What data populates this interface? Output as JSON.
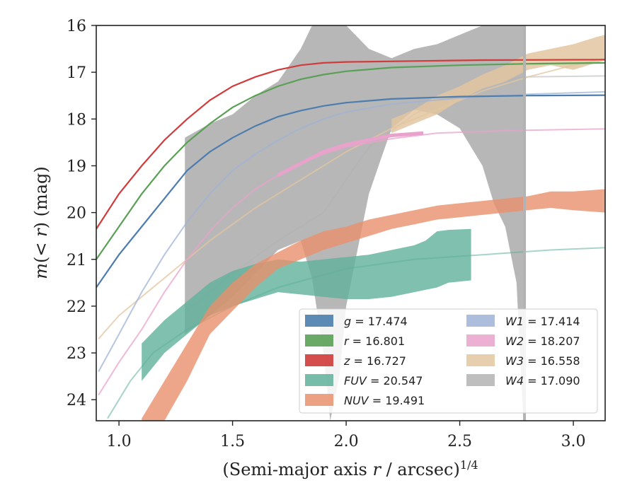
{
  "chart_data": {
    "type": "line",
    "xlabel": "(Semi-major axis r / arcsec)^1/4",
    "ylabel": "m(<r) (mag)",
    "xlim": [
      0.9,
      3.14
    ],
    "ylim": [
      24.45,
      16.0
    ],
    "y_inverted": true,
    "xticks": [
      1.0,
      1.5,
      2.0,
      2.5,
      3.0
    ],
    "xtick_labels": [
      "1.0",
      "1.5",
      "2.0",
      "2.5",
      "3.0"
    ],
    "yticks": [
      16,
      17,
      18,
      19,
      20,
      21,
      22,
      23,
      24
    ],
    "ytick_labels": [
      "16",
      "17",
      "18",
      "19",
      "20",
      "21",
      "22",
      "23",
      "24"
    ],
    "grid": false,
    "legend_position": "lower-right",
    "series": [
      {
        "name": "g = 17.474",
        "label_var": "g",
        "label_val": "17.474",
        "color": "#4C7DAE",
        "kind": "line",
        "points": [
          [
            0.9,
            21.6
          ],
          [
            1.0,
            20.9
          ],
          [
            1.1,
            20.3
          ],
          [
            1.2,
            19.7
          ],
          [
            1.3,
            19.1
          ],
          [
            1.4,
            18.7
          ],
          [
            1.5,
            18.4
          ],
          [
            1.6,
            18.15
          ],
          [
            1.7,
            17.95
          ],
          [
            1.8,
            17.82
          ],
          [
            1.9,
            17.72
          ],
          [
            2.0,
            17.65
          ],
          [
            2.2,
            17.57
          ],
          [
            2.5,
            17.52
          ],
          [
            2.8,
            17.5
          ],
          [
            3.14,
            17.49
          ]
        ]
      },
      {
        "name": "r = 16.801",
        "label_var": "r",
        "label_val": "16.801",
        "color": "#5AA055",
        "kind": "line",
        "points": [
          [
            0.9,
            21.0
          ],
          [
            1.0,
            20.3
          ],
          [
            1.1,
            19.6
          ],
          [
            1.2,
            19.0
          ],
          [
            1.3,
            18.5
          ],
          [
            1.4,
            18.1
          ],
          [
            1.5,
            17.75
          ],
          [
            1.6,
            17.5
          ],
          [
            1.7,
            17.3
          ],
          [
            1.8,
            17.15
          ],
          [
            1.9,
            17.05
          ],
          [
            2.0,
            16.98
          ],
          [
            2.2,
            16.9
          ],
          [
            2.5,
            16.85
          ],
          [
            2.8,
            16.82
          ],
          [
            3.14,
            16.8
          ]
        ]
      },
      {
        "name": "z = 16.727",
        "label_var": "z",
        "label_val": "16.727",
        "color": "#D03B3B",
        "kind": "line",
        "points": [
          [
            0.9,
            20.35
          ],
          [
            1.0,
            19.6
          ],
          [
            1.1,
            19.0
          ],
          [
            1.2,
            18.45
          ],
          [
            1.3,
            18.0
          ],
          [
            1.4,
            17.6
          ],
          [
            1.5,
            17.3
          ],
          [
            1.6,
            17.1
          ],
          [
            1.7,
            16.95
          ],
          [
            1.8,
            16.85
          ],
          [
            1.9,
            16.8
          ],
          [
            2.0,
            16.78
          ],
          [
            2.3,
            16.76
          ],
          [
            2.6,
            16.74
          ],
          [
            3.14,
            16.73
          ]
        ]
      },
      {
        "name": "FUV = 20.547",
        "label_var": "FUV",
        "label_val": "20.547",
        "color": "#5FB09A",
        "kind": "band",
        "upper": [
          [
            1.1,
            22.8
          ],
          [
            1.2,
            22.3
          ],
          [
            1.3,
            21.9
          ],
          [
            1.4,
            21.5
          ],
          [
            1.5,
            21.25
          ],
          [
            1.6,
            21.1
          ],
          [
            1.7,
            21.0
          ],
          [
            1.8,
            21.05
          ],
          [
            1.9,
            21.0
          ],
          [
            2.0,
            20.95
          ],
          [
            2.1,
            20.9
          ],
          [
            2.2,
            20.8
          ],
          [
            2.3,
            20.7
          ],
          [
            2.35,
            20.6
          ],
          [
            2.4,
            20.4
          ],
          [
            2.45,
            20.37
          ],
          [
            2.55,
            20.35
          ]
        ],
        "lower": [
          [
            1.1,
            23.6
          ],
          [
            1.2,
            23.0
          ],
          [
            1.3,
            22.6
          ],
          [
            1.4,
            22.2
          ],
          [
            1.5,
            22.0
          ],
          [
            1.6,
            21.85
          ],
          [
            1.7,
            21.7
          ],
          [
            1.8,
            21.75
          ],
          [
            1.9,
            21.8
          ],
          [
            2.0,
            21.85
          ],
          [
            2.1,
            21.85
          ],
          [
            2.2,
            21.8
          ],
          [
            2.3,
            21.7
          ],
          [
            2.4,
            21.6
          ],
          [
            2.45,
            21.5
          ],
          [
            2.55,
            21.45
          ]
        ],
        "fit": [
          [
            0.95,
            24.4
          ],
          [
            1.05,
            23.6
          ],
          [
            1.15,
            23.0
          ],
          [
            1.3,
            22.5
          ],
          [
            1.5,
            22.0
          ],
          [
            1.7,
            21.6
          ],
          [
            2.0,
            21.2
          ],
          [
            2.3,
            21.0
          ],
          [
            2.6,
            20.9
          ],
          [
            2.9,
            20.8
          ],
          [
            3.14,
            20.75
          ]
        ]
      },
      {
        "name": "NUV = 19.491",
        "label_var": "NUV",
        "label_val": "19.491",
        "color": "#E9906C",
        "kind": "band",
        "upper": [
          [
            1.1,
            24.4
          ],
          [
            1.2,
            23.6
          ],
          [
            1.3,
            22.8
          ],
          [
            1.4,
            22.0
          ],
          [
            1.5,
            21.5
          ],
          [
            1.6,
            21.1
          ],
          [
            1.7,
            20.85
          ],
          [
            1.8,
            20.6
          ],
          [
            1.9,
            20.4
          ],
          [
            2.0,
            20.3
          ],
          [
            2.1,
            20.15
          ],
          [
            2.2,
            20.05
          ],
          [
            2.3,
            19.95
          ],
          [
            2.4,
            19.85
          ],
          [
            2.5,
            19.8
          ],
          [
            2.6,
            19.75
          ],
          [
            2.7,
            19.7
          ],
          [
            2.8,
            19.65
          ],
          [
            2.9,
            19.55
          ],
          [
            3.0,
            19.55
          ],
          [
            3.14,
            19.5
          ]
        ],
        "lower": [
          [
            1.1,
            24.45
          ],
          [
            1.2,
            24.45
          ],
          [
            1.3,
            23.6
          ],
          [
            1.4,
            22.6
          ],
          [
            1.5,
            22.1
          ],
          [
            1.6,
            21.6
          ],
          [
            1.7,
            21.2
          ],
          [
            1.8,
            21.0
          ],
          [
            1.9,
            20.8
          ],
          [
            2.0,
            20.65
          ],
          [
            2.1,
            20.5
          ],
          [
            2.2,
            20.35
          ],
          [
            2.3,
            20.25
          ],
          [
            2.4,
            20.15
          ],
          [
            2.5,
            20.1
          ],
          [
            2.6,
            20.05
          ],
          [
            2.7,
            20.0
          ],
          [
            2.8,
            19.95
          ],
          [
            2.9,
            19.9
          ],
          [
            3.0,
            19.95
          ],
          [
            3.14,
            20.0
          ]
        ]
      },
      {
        "name": "W1 = 17.414",
        "label_var": "W1",
        "label_val": "17.414",
        "color": "#9FB3D6",
        "kind": "line",
        "points": [
          [
            0.91,
            23.4
          ],
          [
            1.0,
            22.6
          ],
          [
            1.1,
            21.7
          ],
          [
            1.2,
            20.9
          ],
          [
            1.3,
            20.2
          ],
          [
            1.4,
            19.6
          ],
          [
            1.5,
            19.1
          ],
          [
            1.6,
            18.75
          ],
          [
            1.7,
            18.45
          ],
          [
            1.8,
            18.2
          ],
          [
            1.9,
            18.0
          ],
          [
            2.0,
            17.85
          ],
          [
            2.2,
            17.68
          ],
          [
            2.5,
            17.55
          ],
          [
            2.8,
            17.47
          ],
          [
            3.14,
            17.42
          ]
        ]
      },
      {
        "name": "W2 = 18.207",
        "label_var": "W2",
        "label_val": "18.207",
        "color": "#E9A2CB",
        "kind": "line",
        "points": [
          [
            0.91,
            23.9
          ],
          [
            1.0,
            23.2
          ],
          [
            1.1,
            22.5
          ],
          [
            1.2,
            21.7
          ],
          [
            1.3,
            21.0
          ],
          [
            1.4,
            20.4
          ],
          [
            1.5,
            19.9
          ],
          [
            1.6,
            19.5
          ],
          [
            1.7,
            19.2
          ],
          [
            1.8,
            18.95
          ],
          [
            1.9,
            18.75
          ],
          [
            2.0,
            18.6
          ],
          [
            2.2,
            18.42
          ],
          [
            2.4,
            18.3
          ],
          [
            2.7,
            18.25
          ],
          [
            3.14,
            18.21
          ]
        ],
        "segment": [
          [
            1.7,
            19.2
          ],
          [
            1.8,
            18.95
          ],
          [
            1.9,
            18.7
          ],
          [
            2.0,
            18.55
          ],
          [
            2.1,
            18.45
          ],
          [
            2.2,
            18.35
          ],
          [
            2.34,
            18.3
          ]
        ]
      },
      {
        "name": "W3 = 16.558",
        "label_var": "W3",
        "label_val": "16.558",
        "color": "#E2C6A0",
        "kind": "line",
        "points": [
          [
            0.91,
            22.7
          ],
          [
            1.0,
            22.2
          ],
          [
            1.2,
            21.4
          ],
          [
            1.4,
            20.6
          ],
          [
            1.6,
            19.9
          ],
          [
            1.8,
            19.3
          ],
          [
            2.0,
            18.7
          ],
          [
            2.2,
            18.2
          ],
          [
            2.4,
            17.8
          ],
          [
            2.6,
            17.4
          ],
          [
            2.8,
            17.1
          ],
          [
            3.0,
            16.85
          ],
          [
            3.14,
            16.7
          ]
        ],
        "upper": [
          [
            2.2,
            18.0
          ],
          [
            2.3,
            17.8
          ],
          [
            2.4,
            17.5
          ],
          [
            2.5,
            17.3
          ],
          [
            2.6,
            17.05
          ],
          [
            2.7,
            16.85
          ],
          [
            2.8,
            16.6
          ],
          [
            2.9,
            16.5
          ],
          [
            3.0,
            16.4
          ],
          [
            3.1,
            16.25
          ],
          [
            3.14,
            16.2
          ]
        ],
        "lower": [
          [
            2.2,
            18.3
          ],
          [
            2.3,
            18.1
          ],
          [
            2.4,
            17.9
          ],
          [
            2.5,
            17.6
          ],
          [
            2.6,
            17.35
          ],
          [
            2.7,
            17.2
          ],
          [
            2.8,
            16.95
          ],
          [
            2.9,
            16.85
          ],
          [
            3.0,
            16.95
          ],
          [
            3.1,
            16.8
          ],
          [
            3.14,
            16.75
          ]
        ]
      },
      {
        "name": "W4 = 17.090",
        "label_var": "W4",
        "label_val": "17.090",
        "color": "#B3B3B3",
        "kind": "band",
        "upper": [
          [
            1.29,
            18.4
          ],
          [
            1.4,
            18.1
          ],
          [
            1.5,
            17.9
          ],
          [
            1.6,
            17.5
          ],
          [
            1.7,
            17.2
          ],
          [
            1.8,
            16.5
          ],
          [
            1.85,
            16.0
          ],
          [
            1.9,
            16.0
          ],
          [
            2.0,
            16.0
          ],
          [
            2.1,
            16.5
          ],
          [
            2.2,
            16.7
          ],
          [
            2.3,
            16.5
          ],
          [
            2.4,
            16.4
          ],
          [
            2.5,
            16.2
          ],
          [
            2.6,
            16.0
          ],
          [
            2.785,
            16.0
          ]
        ],
        "lower": [
          [
            1.29,
            22.6
          ],
          [
            1.4,
            22.2
          ],
          [
            1.5,
            21.8
          ],
          [
            1.6,
            21.3
          ],
          [
            1.7,
            20.8
          ],
          [
            1.8,
            20.6
          ],
          [
            1.85,
            21.4
          ],
          [
            1.9,
            23.0
          ],
          [
            1.93,
            24.45
          ],
          [
            1.97,
            23.5
          ],
          [
            2.0,
            22.0
          ],
          [
            2.05,
            20.8
          ],
          [
            2.1,
            19.6
          ],
          [
            2.15,
            18.9
          ],
          [
            2.2,
            18.2
          ],
          [
            2.3,
            17.8
          ],
          [
            2.4,
            17.9
          ],
          [
            2.5,
            18.2
          ],
          [
            2.6,
            19.0
          ],
          [
            2.65,
            19.8
          ],
          [
            2.7,
            20.3
          ],
          [
            2.75,
            21.5
          ],
          [
            2.78,
            24.45
          ]
        ],
        "fit": [
          [
            1.3,
            22.1
          ],
          [
            1.5,
            21.3
          ],
          [
            1.7,
            20.6
          ],
          [
            1.9,
            20.0
          ],
          [
            2.1,
            18.6
          ],
          [
            2.3,
            17.9
          ],
          [
            2.5,
            17.4
          ],
          [
            2.78,
            17.1
          ],
          [
            3.14,
            17.08
          ]
        ]
      }
    ]
  }
}
